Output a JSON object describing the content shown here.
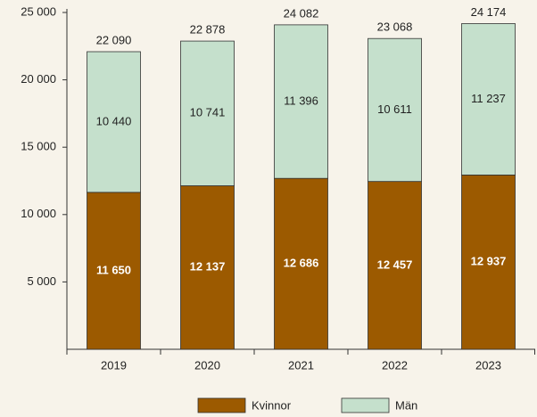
{
  "chart_data": {
    "type": "stacked_bar",
    "categories": [
      "2019",
      "2020",
      "2021",
      "2022",
      "2023"
    ],
    "series": [
      {
        "name": "Kvinnor",
        "color": "#9c5a00",
        "values": [
          11650,
          12137,
          12686,
          12457,
          12937
        ],
        "value_labels": [
          "11 650",
          "12 137",
          "12 686",
          "12 457",
          "12 937"
        ]
      },
      {
        "name": "Män",
        "color": "#c5e0cc",
        "values": [
          10440,
          10741,
          11396,
          10611,
          11237
        ],
        "value_labels": [
          "10 440",
          "10 741",
          "11 396",
          "10 611",
          "11 237"
        ]
      }
    ],
    "totals": [
      22090,
      22878,
      24082,
      23068,
      24174
    ],
    "total_labels": [
      "22 090",
      "22 878",
      "24 082",
      "23 068",
      "24 174"
    ],
    "ylim": [
      0,
      25000
    ],
    "yticks": [
      {
        "value": 5000,
        "label": "5 000"
      },
      {
        "value": 10000,
        "label": "10 000"
      },
      {
        "value": 15000,
        "label": "15 000"
      },
      {
        "value": 20000,
        "label": "20 000"
      },
      {
        "value": 25000,
        "label": "25 000"
      }
    ],
    "legend": "bottom"
  }
}
